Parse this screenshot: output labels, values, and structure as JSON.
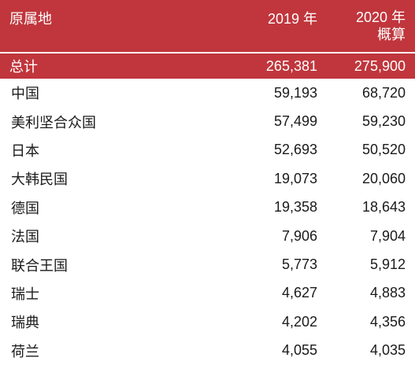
{
  "header": {
    "origin": "原属地",
    "col2019": "2019 年",
    "col2020_line1": "2020 年",
    "col2020_line2": "概算"
  },
  "total": {
    "name": "总计",
    "v2019": "265,381",
    "v2020": "275,900"
  },
  "rows": [
    {
      "name": "中国",
      "v2019": "59,193",
      "v2020": "68,720"
    },
    {
      "name": "美利坚合众国",
      "v2019": "57,499",
      "v2020": "59,230"
    },
    {
      "name": "日本",
      "v2019": "52,693",
      "v2020": "50,520"
    },
    {
      "name": "大韩民国",
      "v2019": "19,073",
      "v2020": "20,060"
    },
    {
      "name": "德国",
      "v2019": "19,358",
      "v2020": "18,643"
    },
    {
      "name": "法国",
      "v2019": "7,906",
      "v2020": "7,904"
    },
    {
      "name": "联合王国",
      "v2019": "5,773",
      "v2020": "5,912"
    },
    {
      "name": "瑞士",
      "v2019": "4,627",
      "v2020": "4,883"
    },
    {
      "name": "瑞典",
      "v2019": "4,202",
      "v2020": "4,356"
    },
    {
      "name": "荷兰",
      "v2019": "4,055",
      "v2020": "4,035"
    }
  ],
  "colors": {
    "header_bg": "#c0363c",
    "header_text": "#ffffff",
    "body_text": "#1a1a1a"
  }
}
